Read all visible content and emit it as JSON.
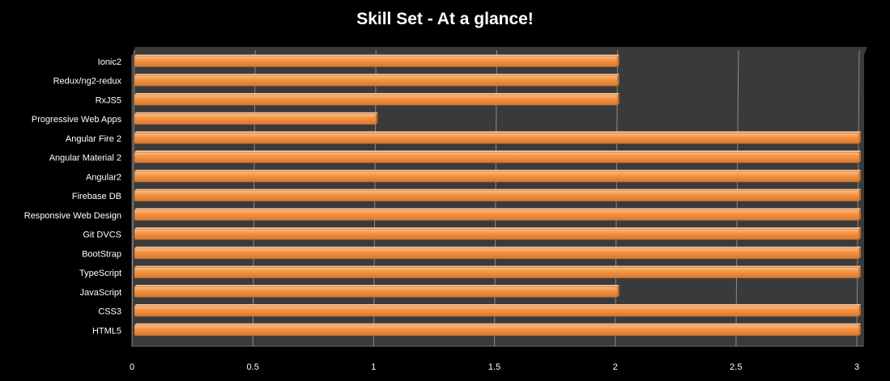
{
  "chart_data": {
    "type": "bar",
    "orientation": "horizontal",
    "title": "Skill Set - At a glance!",
    "xlabel": "",
    "ylabel": "",
    "xlim": [
      0,
      3
    ],
    "x_ticks": [
      "0",
      "0.5",
      "1",
      "1.5",
      "2",
      "2.5",
      "3"
    ],
    "grid": true,
    "legend": "none",
    "colors": {
      "bar": "#f79646",
      "plot_background": "#3a3a3a",
      "gridline": "#8a8a8a",
      "text": "#ffffff"
    },
    "categories": [
      "Ionic2",
      "Redux/ng2-redux",
      "RxJS5",
      "Progressive Web Apps",
      "Angular Fire 2",
      "Angular Material 2",
      "Angular2",
      "Firebase DB",
      "Responsive Web Design",
      "Git DVCS",
      "BootStrap",
      "TypeScript",
      "JavaScript",
      "CSS3",
      "HTML5"
    ],
    "values": [
      2,
      2,
      2,
      1,
      3,
      3,
      3,
      3,
      3,
      3,
      3,
      3,
      2,
      3,
      3
    ]
  }
}
